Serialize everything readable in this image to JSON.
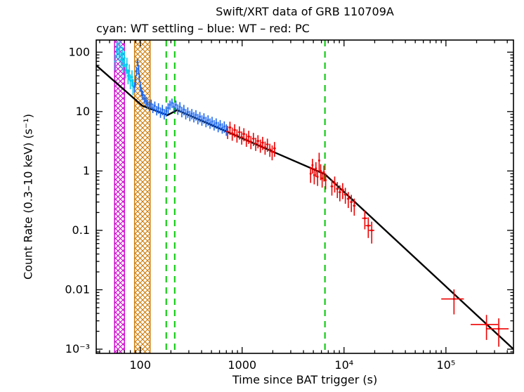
{
  "chart_data": {
    "type": "scatter",
    "title": "Swift/XRT data of GRB 110709A",
    "subtitle": "cyan: WT settling – blue: WT – red: PC",
    "xlabel": "Time since BAT trigger (s)",
    "ylabel": "Count Rate (0.3–10 keV) (s⁻¹)",
    "xscale": "log",
    "yscale": "log",
    "xlim": [
      37,
      460000
    ],
    "ylim": [
      0.00085,
      160
    ],
    "grid": false,
    "legend_position": "subtitle-text",
    "xticks": [
      {
        "v": 100,
        "label": "100"
      },
      {
        "v": 1000,
        "label": "1000"
      },
      {
        "v": 10000,
        "label": "10⁴"
      },
      {
        "v": 100000,
        "label": "10⁵"
      }
    ],
    "yticks": [
      {
        "v": 100,
        "label": "100"
      },
      {
        "v": 10,
        "label": "10"
      },
      {
        "v": 1,
        "label": "1"
      },
      {
        "v": 0.1,
        "label": "0.1"
      },
      {
        "v": 0.01,
        "label": "0.01"
      },
      {
        "v": 0.001,
        "label": "10⁻³"
      }
    ],
    "bands": [
      {
        "name": "settling-interval",
        "color": "#cc00cc",
        "x0": 56,
        "x1": 70
      },
      {
        "name": "wt-interval",
        "color": "#cc7700",
        "x0": 88,
        "x1": 125
      }
    ],
    "vlines": [
      {
        "name": "break-marker-1",
        "x": 180,
        "color": "#00c800",
        "style": "dashed"
      },
      {
        "name": "break-marker-2",
        "x": 218,
        "color": "#00c800",
        "style": "dashed"
      },
      {
        "name": "break-marker-3",
        "x": 6500,
        "color": "#00c800",
        "style": "dashed"
      }
    ],
    "model": {
      "name": "broken-power-law-fit",
      "color": "#000000",
      "points": [
        [
          37,
          60
        ],
        [
          105,
          12.5
        ],
        [
          145,
          10.2
        ],
        [
          185,
          8.7
        ],
        [
          230,
          10.6
        ],
        [
          6500,
          0.88
        ],
        [
          460000,
          0.001
        ]
      ]
    },
    "series": [
      {
        "name": "WT settling",
        "color": "#00ccee",
        "points": [
          [
            57,
            70,
            0.3,
            0.02
          ],
          [
            59,
            110,
            0.28,
            0.02
          ],
          [
            60,
            140,
            0.3,
            0.02
          ],
          [
            62,
            95,
            0.25,
            0.02
          ],
          [
            63,
            120,
            0.3,
            0.02
          ],
          [
            65,
            75,
            0.28,
            0.02
          ],
          [
            67,
            95,
            0.3,
            0.02
          ],
          [
            68,
            60,
            0.25,
            0.02
          ],
          [
            70,
            80,
            0.3,
            0.02
          ],
          [
            72,
            50,
            0.28,
            0.02
          ],
          [
            74,
            62,
            0.3,
            0.02
          ],
          [
            76,
            40,
            0.28,
            0.02
          ],
          [
            78,
            48,
            0.3,
            0.02
          ],
          [
            80,
            33,
            0.28,
            0.02
          ],
          [
            83,
            38,
            0.3,
            0.02
          ],
          [
            85,
            27,
            0.3,
            0.02
          ]
        ]
      },
      {
        "name": "WT",
        "color": "#1a66ee",
        "points": [
          [
            88,
            26,
            0.2,
            0.01
          ],
          [
            90,
            34,
            0.2,
            0.01
          ],
          [
            92,
            48,
            0.18,
            0.01
          ],
          [
            94,
            68,
            0.15,
            0.01
          ],
          [
            96,
            52,
            0.18,
            0.01
          ],
          [
            98,
            38,
            0.18,
            0.01
          ],
          [
            100,
            27,
            0.18,
            0.01
          ],
          [
            103,
            22,
            0.18,
            0.01
          ],
          [
            106,
            19,
            0.18,
            0.01
          ],
          [
            110,
            16.5,
            0.18,
            0.01
          ],
          [
            114,
            15,
            0.18,
            0.01
          ],
          [
            118,
            13.5,
            0.18,
            0.01
          ],
          [
            123,
            12.5,
            0.18,
            0.01
          ],
          [
            128,
            13.5,
            0.18,
            0.01
          ],
          [
            133,
            11.5,
            0.18,
            0.01
          ],
          [
            139,
            12.5,
            0.18,
            0.01
          ],
          [
            145,
            10.5,
            0.18,
            0.01
          ],
          [
            151,
            11.5,
            0.2,
            0.01
          ],
          [
            158,
            9.8,
            0.2,
            0.01
          ],
          [
            165,
            10.8,
            0.2,
            0.01
          ],
          [
            172,
            9.2,
            0.2,
            0.01
          ],
          [
            180,
            10.2,
            0.2,
            0.01
          ],
          [
            188,
            11.5,
            0.2,
            0.01
          ],
          [
            196,
            13,
            0.18,
            0.01
          ],
          [
            205,
            14,
            0.18,
            0.01
          ],
          [
            214,
            12,
            0.18,
            0.01
          ],
          [
            224,
            13,
            0.18,
            0.01
          ],
          [
            234,
            11,
            0.2,
            0.01
          ],
          [
            245,
            12,
            0.2,
            0.01
          ],
          [
            256,
            10,
            0.2,
            0.01
          ],
          [
            268,
            10.8,
            0.2,
            0.01
          ],
          [
            280,
            9.2,
            0.2,
            0.01
          ],
          [
            293,
            9.8,
            0.2,
            0.01
          ],
          [
            307,
            8.6,
            0.2,
            0.01
          ],
          [
            321,
            9.2,
            0.2,
            0.01
          ],
          [
            336,
            8.2,
            0.2,
            0.01
          ],
          [
            352,
            8.8,
            0.2,
            0.01
          ],
          [
            368,
            7.6,
            0.2,
            0.01
          ],
          [
            385,
            8.2,
            0.2,
            0.01
          ],
          [
            403,
            7.2,
            0.2,
            0.01
          ],
          [
            422,
            7.8,
            0.2,
            0.01
          ],
          [
            442,
            6.8,
            0.2,
            0.01
          ],
          [
            463,
            7.2,
            0.2,
            0.01
          ],
          [
            484,
            6.4,
            0.2,
            0.01
          ],
          [
            507,
            6.8,
            0.2,
            0.01
          ],
          [
            531,
            6.0,
            0.2,
            0.01
          ],
          [
            556,
            6.4,
            0.2,
            0.01
          ],
          [
            582,
            5.6,
            0.2,
            0.01
          ],
          [
            609,
            6.0,
            0.2,
            0.01
          ],
          [
            638,
            5.3,
            0.2,
            0.01
          ],
          [
            668,
            5.6,
            0.22,
            0.01
          ],
          [
            699,
            5.0,
            0.22,
            0.01
          ]
        ]
      },
      {
        "name": "PC",
        "color": "#ee0000",
        "points": [
          [
            720,
            4.6,
            0.25,
            0.03
          ],
          [
            760,
            5.4,
            0.25,
            0.03
          ],
          [
            800,
            4.3,
            0.25,
            0.03
          ],
          [
            845,
            4.9,
            0.25,
            0.03
          ],
          [
            890,
            4.0,
            0.25,
            0.03
          ],
          [
            940,
            4.5,
            0.25,
            0.03
          ],
          [
            990,
            3.7,
            0.25,
            0.03
          ],
          [
            1040,
            4.2,
            0.25,
            0.03
          ],
          [
            1100,
            3.4,
            0.25,
            0.03
          ],
          [
            1160,
            3.8,
            0.25,
            0.03
          ],
          [
            1220,
            3.1,
            0.25,
            0.03
          ],
          [
            1290,
            3.5,
            0.25,
            0.03
          ],
          [
            1360,
            2.9,
            0.25,
            0.03
          ],
          [
            1430,
            3.2,
            0.25,
            0.03
          ],
          [
            1510,
            2.7,
            0.25,
            0.03
          ],
          [
            1590,
            3.0,
            0.25,
            0.03
          ],
          [
            1680,
            2.5,
            0.25,
            0.03
          ],
          [
            1770,
            2.8,
            0.25,
            0.03
          ],
          [
            1870,
            2.3,
            0.25,
            0.03
          ],
          [
            1970,
            2.1,
            0.28,
            0.03
          ],
          [
            2080,
            2.4,
            0.28,
            0.03
          ],
          [
            4700,
            0.9,
            0.3,
            0.02
          ],
          [
            4900,
            1.25,
            0.28,
            0.02
          ],
          [
            5100,
            0.85,
            0.3,
            0.02
          ],
          [
            5300,
            1.1,
            0.28,
            0.02
          ],
          [
            5500,
            0.8,
            0.3,
            0.02
          ],
          [
            5700,
            1.5,
            0.35,
            0.02
          ],
          [
            5900,
            1.0,
            0.3,
            0.02
          ],
          [
            6100,
            0.75,
            0.3,
            0.02
          ],
          [
            6350,
            0.95,
            0.3,
            0.02
          ],
          [
            6600,
            0.7,
            0.3,
            0.02
          ],
          [
            7600,
            0.55,
            0.3,
            0.03
          ],
          [
            8100,
            0.62,
            0.3,
            0.03
          ],
          [
            8600,
            0.5,
            0.3,
            0.03
          ],
          [
            9100,
            0.44,
            0.3,
            0.03
          ],
          [
            9700,
            0.48,
            0.3,
            0.03
          ],
          [
            10300,
            0.4,
            0.3,
            0.03
          ],
          [
            11000,
            0.34,
            0.3,
            0.03
          ],
          [
            11800,
            0.3,
            0.32,
            0.03
          ],
          [
            12600,
            0.26,
            0.32,
            0.03
          ],
          [
            16000,
            0.16,
            0.35,
            0.06
          ],
          [
            17300,
            0.12,
            0.38,
            0.06
          ],
          [
            18700,
            0.1,
            0.4,
            0.06
          ],
          [
            120000,
            0.007,
            0.45,
            0.25
          ],
          [
            250000,
            0.0026,
            0.45,
            0.3
          ],
          [
            330000,
            0.0022,
            0.5,
            0.25
          ]
        ]
      }
    ]
  }
}
